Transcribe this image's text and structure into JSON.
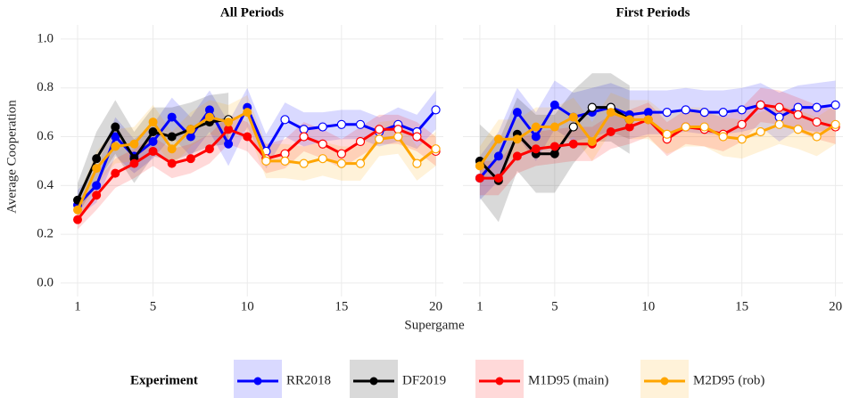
{
  "shared": {
    "xlabel": "Supergame",
    "ylabel": "Average Cooperation",
    "legend_title": "Experiment"
  },
  "chart_data": [
    {
      "type": "line",
      "title": "All Periods",
      "xlim": [
        0.1,
        20.4
      ],
      "ylim": [
        -0.055,
        1.058
      ],
      "xticks": [
        1,
        5,
        10,
        15,
        20
      ],
      "yticks": [
        {
          "value": 0,
          "label": "0.0"
        },
        {
          "value": 0.2,
          "label": "0.2"
        },
        {
          "value": 0.4,
          "label": "0.4"
        },
        {
          "value": 0.6,
          "label": "0.6"
        },
        {
          "value": 0.8,
          "label": "0.8"
        },
        {
          "value": 1,
          "label": "1.0"
        }
      ],
      "grid": true,
      "x": [
        1,
        2,
        3,
        4,
        5,
        6,
        7,
        8,
        9,
        10,
        11,
        12,
        13,
        14,
        15,
        16,
        17,
        18,
        19,
        20
      ],
      "series": [
        {
          "name": "RR2018",
          "color": "#0000ff",
          "hollow_from": 11,
          "values": [
            0.32,
            0.4,
            0.6,
            0.52,
            0.58,
            0.68,
            0.6,
            0.71,
            0.57,
            0.72,
            0.54,
            0.67,
            0.63,
            0.64,
            0.65,
            0.65,
            0.62,
            0.65,
            0.62,
            0.71
          ],
          "lower": [
            0.27,
            0.33,
            0.52,
            0.45,
            0.51,
            0.6,
            0.52,
            0.62,
            0.48,
            0.64,
            0.47,
            0.6,
            0.56,
            0.58,
            0.59,
            0.59,
            0.56,
            0.58,
            0.55,
            0.63
          ],
          "upper": [
            0.38,
            0.47,
            0.68,
            0.59,
            0.65,
            0.76,
            0.68,
            0.79,
            0.66,
            0.8,
            0.61,
            0.74,
            0.7,
            0.7,
            0.71,
            0.71,
            0.68,
            0.72,
            0.69,
            0.79
          ]
        },
        {
          "name": "DF2019",
          "color": "#000000",
          "hollow_from": 9,
          "values": [
            0.34,
            0.51,
            0.64,
            0.51,
            0.62,
            0.6,
            0.63,
            0.66,
            0.67,
            null,
            null,
            null,
            null,
            null,
            null,
            null,
            null,
            null,
            null,
            null
          ],
          "lower": [
            0.28,
            0.41,
            0.53,
            0.41,
            0.52,
            0.5,
            0.53,
            0.56,
            0.57,
            null,
            null,
            null,
            null,
            null,
            null,
            null,
            null,
            null,
            null,
            null
          ],
          "upper": [
            0.41,
            0.62,
            0.75,
            0.62,
            0.72,
            0.72,
            0.74,
            0.77,
            0.78,
            null,
            null,
            null,
            null,
            null,
            null,
            null,
            null,
            null,
            null,
            null
          ]
        },
        {
          "name": "M1D95 (main)",
          "color": "#ff0000",
          "hollow_from": 11,
          "values": [
            0.26,
            0.36,
            0.45,
            0.49,
            0.54,
            0.49,
            0.51,
            0.55,
            0.63,
            0.6,
            0.51,
            0.53,
            0.6,
            0.57,
            0.53,
            0.58,
            0.63,
            0.63,
            0.6,
            0.54
          ],
          "lower": [
            0.22,
            0.3,
            0.39,
            0.43,
            0.48,
            0.43,
            0.45,
            0.49,
            0.57,
            0.54,
            0.45,
            0.47,
            0.54,
            0.51,
            0.47,
            0.52,
            0.57,
            0.57,
            0.54,
            0.48
          ],
          "upper": [
            0.3,
            0.42,
            0.51,
            0.55,
            0.6,
            0.55,
            0.57,
            0.61,
            0.69,
            0.66,
            0.57,
            0.59,
            0.66,
            0.63,
            0.59,
            0.64,
            0.69,
            0.69,
            0.66,
            0.6
          ]
        },
        {
          "name": "M2D95 (rob)",
          "color": "#ffa500",
          "hollow_from": 11,
          "values": [
            0.3,
            0.47,
            0.56,
            0.57,
            0.66,
            0.55,
            0.63,
            0.68,
            0.66,
            0.7,
            0.5,
            0.5,
            0.49,
            0.51,
            0.49,
            0.49,
            0.59,
            0.6,
            0.49,
            0.55
          ],
          "lower": [
            0.25,
            0.4,
            0.49,
            0.5,
            0.59,
            0.48,
            0.56,
            0.61,
            0.59,
            0.63,
            0.43,
            0.43,
            0.42,
            0.44,
            0.42,
            0.42,
            0.52,
            0.53,
            0.42,
            0.48
          ],
          "upper": [
            0.35,
            0.54,
            0.63,
            0.64,
            0.73,
            0.62,
            0.7,
            0.75,
            0.73,
            0.77,
            0.57,
            0.57,
            0.56,
            0.58,
            0.56,
            0.56,
            0.66,
            0.67,
            0.56,
            0.62
          ]
        }
      ]
    },
    {
      "type": "line",
      "title": "First Periods",
      "xlim": [
        0.1,
        20.4
      ],
      "ylim": [
        -0.055,
        1.058
      ],
      "xticks": [
        1,
        5,
        10,
        15,
        20
      ],
      "grid": true,
      "x": [
        1,
        2,
        3,
        4,
        5,
        6,
        7,
        8,
        9,
        10,
        11,
        12,
        13,
        14,
        15,
        16,
        17,
        18,
        19,
        20
      ],
      "series": [
        {
          "name": "RR2018",
          "color": "#0000ff",
          "hollow_from": 11,
          "values": [
            0.43,
            0.52,
            0.7,
            0.6,
            0.73,
            0.68,
            0.7,
            0.72,
            0.69,
            0.7,
            0.7,
            0.71,
            0.7,
            0.7,
            0.71,
            0.73,
            0.68,
            0.72,
            0.72,
            0.73
          ],
          "lower": [
            0.34,
            0.42,
            0.6,
            0.5,
            0.63,
            0.58,
            0.6,
            0.62,
            0.59,
            0.61,
            0.61,
            0.62,
            0.61,
            0.61,
            0.62,
            0.64,
            0.58,
            0.63,
            0.62,
            0.63
          ],
          "upper": [
            0.52,
            0.62,
            0.8,
            0.7,
            0.83,
            0.78,
            0.8,
            0.82,
            0.79,
            0.79,
            0.79,
            0.8,
            0.79,
            0.79,
            0.8,
            0.82,
            0.78,
            0.81,
            0.82,
            0.83
          ]
        },
        {
          "name": "DF2019",
          "color": "#000000",
          "hollow_from": 6,
          "values": [
            0.5,
            0.42,
            0.61,
            0.53,
            0.53,
            0.64,
            0.72,
            0.72,
            0.67,
            null,
            null,
            null,
            null,
            null,
            null,
            null,
            null,
            null,
            null,
            null
          ],
          "lower": [
            0.35,
            0.25,
            0.46,
            0.37,
            0.37,
            0.49,
            0.58,
            0.58,
            0.53,
            null,
            null,
            null,
            null,
            null,
            null,
            null,
            null,
            null,
            null,
            null
          ],
          "upper": [
            0.65,
            0.58,
            0.76,
            0.69,
            0.69,
            0.79,
            0.86,
            0.86,
            0.81,
            null,
            null,
            null,
            null,
            null,
            null,
            null,
            null,
            null,
            null,
            null
          ]
        },
        {
          "name": "M1D95 (main)",
          "color": "#ff0000",
          "hollow_from": 11,
          "values": [
            0.43,
            0.43,
            0.52,
            0.55,
            0.56,
            0.57,
            0.57,
            0.62,
            0.64,
            0.67,
            0.59,
            0.64,
            0.63,
            0.61,
            0.65,
            0.73,
            0.72,
            0.69,
            0.66,
            0.64
          ],
          "lower": [
            0.36,
            0.36,
            0.45,
            0.48,
            0.49,
            0.5,
            0.5,
            0.55,
            0.57,
            0.6,
            0.52,
            0.57,
            0.56,
            0.54,
            0.58,
            0.66,
            0.65,
            0.62,
            0.59,
            0.57
          ],
          "upper": [
            0.5,
            0.5,
            0.59,
            0.62,
            0.63,
            0.64,
            0.64,
            0.69,
            0.71,
            0.74,
            0.66,
            0.71,
            0.7,
            0.68,
            0.72,
            0.8,
            0.79,
            0.76,
            0.73,
            0.71
          ]
        },
        {
          "name": "M2D95 (rob)",
          "color": "#ffa500",
          "hollow_from": 11,
          "values": [
            0.48,
            0.59,
            0.59,
            0.64,
            0.64,
            0.68,
            0.58,
            0.7,
            0.67,
            0.67,
            0.61,
            0.64,
            0.64,
            0.6,
            0.59,
            0.62,
            0.65,
            0.63,
            0.6,
            0.65
          ],
          "lower": [
            0.4,
            0.51,
            0.51,
            0.56,
            0.56,
            0.6,
            0.5,
            0.62,
            0.59,
            0.59,
            0.53,
            0.56,
            0.56,
            0.52,
            0.51,
            0.54,
            0.57,
            0.55,
            0.52,
            0.57
          ],
          "upper": [
            0.56,
            0.67,
            0.67,
            0.72,
            0.72,
            0.76,
            0.66,
            0.78,
            0.75,
            0.75,
            0.69,
            0.72,
            0.72,
            0.68,
            0.67,
            0.7,
            0.73,
            0.71,
            0.68,
            0.73
          ]
        }
      ]
    }
  ]
}
